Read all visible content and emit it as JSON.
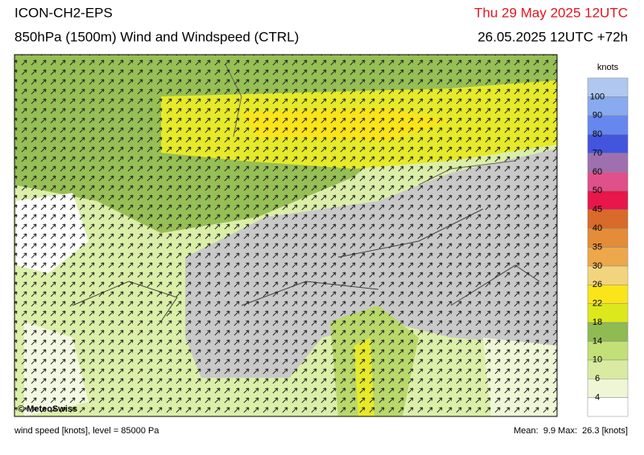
{
  "header": {
    "model": "ICON-CH2-EPS",
    "title": "850hPa (1500m) Wind and Windspeed (CTRL)",
    "valid": "Thu 29 May 2025 12UTC",
    "run": "26.05.2025 12UTC +72h"
  },
  "map": {
    "credit": "© MeteoSwiss"
  },
  "legend": {
    "unit": "knots",
    "levels": [
      4,
      6,
      10,
      14,
      18,
      22,
      26,
      30,
      35,
      40,
      45,
      50,
      60,
      70,
      80,
      90,
      100
    ],
    "colors": [
      "#ffffff",
      "#eef6d6",
      "#d8eba0",
      "#c3df78",
      "#8fbb52",
      "#dde81c",
      "#fbe41a",
      "#f3d47e",
      "#eca84a",
      "#e48c38",
      "#d86a2a",
      "#e8164a",
      "#e0508a",
      "#9f70b0",
      "#4455dd",
      "#6688ee",
      "#88aaee",
      "#b0c8f0"
    ]
  },
  "footer": {
    "description": "wind speed [knots], level = 85000 Pa",
    "stats": "Mean:  9.9 Max:  26.3 [knots]"
  }
}
